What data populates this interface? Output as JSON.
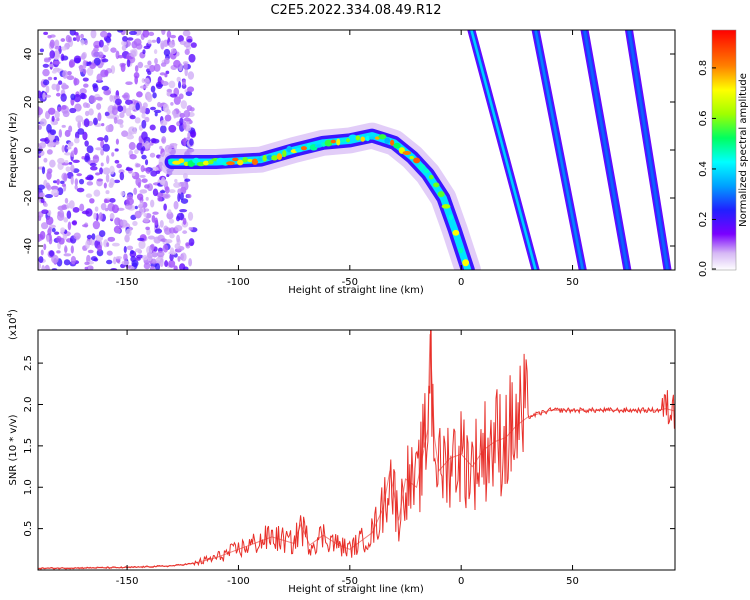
{
  "title": "C2E5.2022.334.08.49.R12",
  "chart_data": [
    {
      "type": "heatmap",
      "xlabel": "Height of straight line (km)",
      "ylabel": "Frequency (Hz)",
      "xlim": [
        -190,
        96
      ],
      "ylim": [
        -50,
        50
      ],
      "x_ticks": [
        -150,
        -100,
        -50,
        0,
        50
      ],
      "x_tick_labels": [
        "-150",
        "-100",
        "-50",
        "0",
        "50"
      ],
      "y_ticks": [
        -40,
        -20,
        0,
        20,
        40
      ],
      "y_tick_labels": [
        "-40",
        "-20",
        "0",
        "20",
        "40"
      ],
      "colorbar": {
        "label": "Normalized spectral amplitude",
        "range": [
          0.0,
          0.95
        ],
        "ticks": [
          0.0,
          0.2,
          0.4,
          0.6,
          0.8
        ],
        "tick_labels": [
          "0.0",
          "0.2",
          "0.4",
          "0.6",
          "0.8"
        ]
      },
      "noise_region": {
        "x_range": [
          -190,
          -120
        ],
        "amplitude": 0.06
      },
      "main_trace": {
        "amplitude": 0.55,
        "points": [
          {
            "x": -130,
            "y": -5
          },
          {
            "x": -110,
            "y": -5
          },
          {
            "x": -90,
            "y": -4
          },
          {
            "x": -75,
            "y": 0
          },
          {
            "x": -62,
            "y": 3
          },
          {
            "x": -50,
            "y": 4
          },
          {
            "x": -40,
            "y": 6
          },
          {
            "x": -30,
            "y": 3
          },
          {
            "x": -22,
            "y": -3
          },
          {
            "x": -15,
            "y": -10
          },
          {
            "x": -8,
            "y": -20
          },
          {
            "x": -3,
            "y": -33
          },
          {
            "x": 3,
            "y": -50
          }
        ]
      },
      "streaks": [
        {
          "x_start": 4,
          "x_end": 34,
          "amplitude": 0.4
        },
        {
          "x_start": 33,
          "x_end": 55,
          "amplitude": 0.25
        },
        {
          "x_start": 55,
          "x_end": 75,
          "amplitude": 0.2
        },
        {
          "x_start": 75,
          "x_end": 93,
          "amplitude": 0.2
        }
      ]
    },
    {
      "type": "line",
      "xlabel": "Height of straight line (km)",
      "ylabel": "SNR (10 * v/v)",
      "multiplier_label": "(x10",
      "multiplier_exponent": "4",
      "multiplier_close": ")",
      "xlim": [
        -190,
        96
      ],
      "ylim": [
        0,
        2.9
      ],
      "x_ticks": [
        -150,
        -100,
        -50,
        0,
        50
      ],
      "x_tick_labels": [
        "-150",
        "-100",
        "-50",
        "0",
        "50"
      ],
      "y_ticks": [
        0.5,
        1.0,
        1.5,
        2.0,
        2.5
      ],
      "y_tick_labels": [
        "0.5",
        "1.0",
        "1.5",
        "2.0",
        "2.5"
      ],
      "series": [
        {
          "color": "#e8302a",
          "x": [
            -190,
            -150,
            -130,
            -120,
            -110,
            -100,
            -95,
            -90,
            -85,
            -75,
            -72,
            -68,
            -62,
            -55,
            -50,
            -45,
            -40,
            -35,
            -32,
            -28,
            -25,
            -20,
            -15,
            -14,
            -12,
            -10,
            -5,
            0,
            5,
            10,
            15,
            20,
            25,
            30,
            40,
            50,
            60,
            70,
            80,
            88,
            92,
            96
          ],
          "y": [
            0.02,
            0.03,
            0.05,
            0.08,
            0.15,
            0.25,
            0.3,
            0.35,
            0.4,
            0.32,
            0.55,
            0.3,
            0.42,
            0.3,
            0.25,
            0.35,
            0.45,
            0.75,
            1.2,
            0.6,
            1.1,
            1.0,
            1.7,
            2.85,
            1.6,
            1.2,
            1.35,
            1.4,
            1.25,
            1.45,
            1.55,
            1.6,
            1.75,
            1.85,
            1.93,
            1.93,
            1.93,
            1.93,
            1.93,
            1.93,
            1.95,
            1.92
          ]
        }
      ]
    }
  ]
}
